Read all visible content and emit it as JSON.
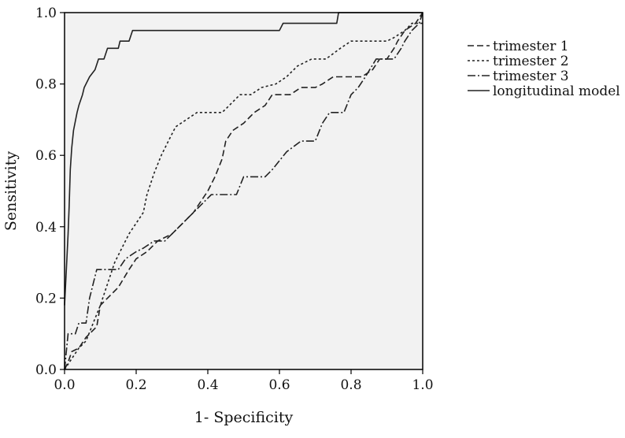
{
  "chart_data": {
    "type": "line",
    "title": "",
    "xlabel": "1- Specificity",
    "ylabel": "Sensitivity",
    "xlim": [
      0,
      1
    ],
    "ylim": [
      0,
      1
    ],
    "xticks": [
      "0.0",
      "0.2",
      "0.4",
      "0.6",
      "0.8",
      "1.0"
    ],
    "yticks": [
      "0.0",
      "0.2",
      "0.4",
      "0.6",
      "0.8",
      "1.0"
    ],
    "grid": false,
    "background": "#f2f2f2",
    "legend_position": "right",
    "series": [
      {
        "name": "trimester 1",
        "dash": "8,4",
        "points": [
          [
            0,
            0
          ],
          [
            0.01,
            0.02
          ],
          [
            0.02,
            0.05
          ],
          [
            0.04,
            0.06
          ],
          [
            0.06,
            0.09
          ],
          [
            0.09,
            0.12
          ],
          [
            0.1,
            0.18
          ],
          [
            0.12,
            0.2
          ],
          [
            0.15,
            0.23
          ],
          [
            0.18,
            0.28
          ],
          [
            0.2,
            0.31
          ],
          [
            0.23,
            0.33
          ],
          [
            0.26,
            0.36
          ],
          [
            0.3,
            0.38
          ],
          [
            0.33,
            0.41
          ],
          [
            0.36,
            0.44
          ],
          [
            0.38,
            0.47
          ],
          [
            0.4,
            0.5
          ],
          [
            0.42,
            0.54
          ],
          [
            0.44,
            0.59
          ],
          [
            0.45,
            0.64
          ],
          [
            0.47,
            0.67
          ],
          [
            0.5,
            0.69
          ],
          [
            0.53,
            0.72
          ],
          [
            0.56,
            0.74
          ],
          [
            0.58,
            0.77
          ],
          [
            0.63,
            0.77
          ],
          [
            0.66,
            0.79
          ],
          [
            0.7,
            0.79
          ],
          [
            0.72,
            0.8
          ],
          [
            0.75,
            0.82
          ],
          [
            0.8,
            0.82
          ],
          [
            0.83,
            0.82
          ],
          [
            0.86,
            0.84
          ],
          [
            0.88,
            0.87
          ],
          [
            0.9,
            0.87
          ],
          [
            0.92,
            0.9
          ],
          [
            0.93,
            0.92
          ],
          [
            0.95,
            0.95
          ],
          [
            0.98,
            0.97
          ],
          [
            1,
            1
          ]
        ]
      },
      {
        "name": "trimester 2",
        "dash": "3,3",
        "points": [
          [
            0,
            0
          ],
          [
            0.02,
            0.03
          ],
          [
            0.04,
            0.06
          ],
          [
            0.06,
            0.08
          ],
          [
            0.08,
            0.13
          ],
          [
            0.1,
            0.18
          ],
          [
            0.12,
            0.24
          ],
          [
            0.14,
            0.3
          ],
          [
            0.16,
            0.34
          ],
          [
            0.18,
            0.38
          ],
          [
            0.2,
            0.41
          ],
          [
            0.22,
            0.44
          ],
          [
            0.23,
            0.49
          ],
          [
            0.25,
            0.55
          ],
          [
            0.27,
            0.6
          ],
          [
            0.29,
            0.64
          ],
          [
            0.31,
            0.68
          ],
          [
            0.34,
            0.7
          ],
          [
            0.37,
            0.72
          ],
          [
            0.41,
            0.72
          ],
          [
            0.44,
            0.72
          ],
          [
            0.46,
            0.74
          ],
          [
            0.49,
            0.77
          ],
          [
            0.52,
            0.77
          ],
          [
            0.55,
            0.79
          ],
          [
            0.59,
            0.8
          ],
          [
            0.62,
            0.82
          ],
          [
            0.65,
            0.85
          ],
          [
            0.69,
            0.87
          ],
          [
            0.73,
            0.87
          ],
          [
            0.77,
            0.9
          ],
          [
            0.8,
            0.92
          ],
          [
            0.85,
            0.92
          ],
          [
            0.9,
            0.92
          ],
          [
            0.92,
            0.93
          ],
          [
            0.95,
            0.95
          ],
          [
            0.97,
            0.97
          ],
          [
            1,
            0.97
          ]
        ]
      },
      {
        "name": "trimester 3",
        "dash": "10,3,2,3",
        "points": [
          [
            0,
            0
          ],
          [
            0.01,
            0.1
          ],
          [
            0.03,
            0.1
          ],
          [
            0.04,
            0.13
          ],
          [
            0.06,
            0.13
          ],
          [
            0.07,
            0.2
          ],
          [
            0.09,
            0.28
          ],
          [
            0.15,
            0.28
          ],
          [
            0.17,
            0.31
          ],
          [
            0.2,
            0.33
          ],
          [
            0.22,
            0.34
          ],
          [
            0.25,
            0.36
          ],
          [
            0.28,
            0.36
          ],
          [
            0.3,
            0.38
          ],
          [
            0.33,
            0.41
          ],
          [
            0.36,
            0.44
          ],
          [
            0.39,
            0.47
          ],
          [
            0.41,
            0.49
          ],
          [
            0.46,
            0.49
          ],
          [
            0.48,
            0.49
          ],
          [
            0.5,
            0.54
          ],
          [
            0.56,
            0.54
          ],
          [
            0.58,
            0.56
          ],
          [
            0.62,
            0.61
          ],
          [
            0.66,
            0.64
          ],
          [
            0.7,
            0.64
          ],
          [
            0.72,
            0.69
          ],
          [
            0.74,
            0.72
          ],
          [
            0.78,
            0.72
          ],
          [
            0.8,
            0.77
          ],
          [
            0.82,
            0.79
          ],
          [
            0.84,
            0.82
          ],
          [
            0.87,
            0.87
          ],
          [
            0.92,
            0.87
          ],
          [
            0.94,
            0.9
          ],
          [
            0.95,
            0.92
          ],
          [
            0.97,
            0.95
          ],
          [
            0.99,
            0.97
          ],
          [
            1,
            1
          ]
        ]
      },
      {
        "name": "longitudinal model",
        "dash": "",
        "points": [
          [
            0,
            0.18
          ],
          [
            0.005,
            0.28
          ],
          [
            0.01,
            0.38
          ],
          [
            0.013,
            0.46
          ],
          [
            0.016,
            0.56
          ],
          [
            0.02,
            0.62
          ],
          [
            0.025,
            0.67
          ],
          [
            0.035,
            0.72
          ],
          [
            0.04,
            0.74
          ],
          [
            0.05,
            0.77
          ],
          [
            0.055,
            0.79
          ],
          [
            0.07,
            0.82
          ],
          [
            0.085,
            0.84
          ],
          [
            0.095,
            0.87
          ],
          [
            0.11,
            0.87
          ],
          [
            0.12,
            0.9
          ],
          [
            0.15,
            0.9
          ],
          [
            0.155,
            0.92
          ],
          [
            0.18,
            0.92
          ],
          [
            0.19,
            0.95
          ],
          [
            0.6,
            0.95
          ],
          [
            0.61,
            0.97
          ],
          [
            0.76,
            0.97
          ],
          [
            0.765,
            1
          ],
          [
            1,
            1
          ]
        ]
      }
    ]
  }
}
